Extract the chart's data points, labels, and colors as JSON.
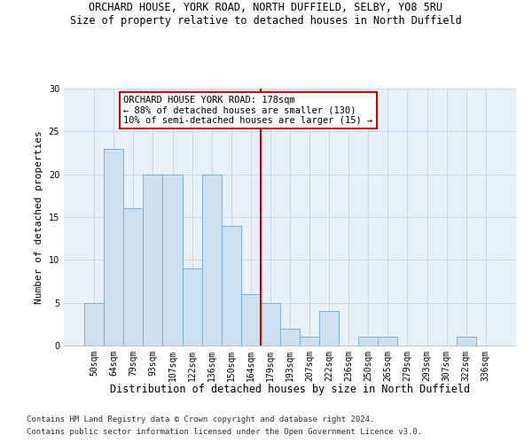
{
  "title": "ORCHARD HOUSE, YORK ROAD, NORTH DUFFIELD, SELBY, YO8 5RU",
  "subtitle": "Size of property relative to detached houses in North Duffield",
  "xlabel": "Distribution of detached houses by size in North Duffield",
  "ylabel": "Number of detached properties",
  "footer_line1": "Contains HM Land Registry data © Crown copyright and database right 2024.",
  "footer_line2": "Contains public sector information licensed under the Open Government Licence v3.0.",
  "annotation_line1": "ORCHARD HOUSE YORK ROAD: 178sqm",
  "annotation_line2": "← 88% of detached houses are smaller (130)",
  "annotation_line3": "10% of semi-detached houses are larger (15) →",
  "bar_color": "#cce0f0",
  "bar_edge_color": "#7bafd4",
  "vline_color": "#cc0000",
  "vline_index": 9,
  "categories": [
    "50sqm",
    "64sqm",
    "79sqm",
    "93sqm",
    "107sqm",
    "122sqm",
    "136sqm",
    "150sqm",
    "164sqm",
    "179sqm",
    "193sqm",
    "207sqm",
    "222sqm",
    "236sqm",
    "250sqm",
    "265sqm",
    "279sqm",
    "293sqm",
    "307sqm",
    "322sqm",
    "336sqm"
  ],
  "values": [
    5,
    23,
    16,
    20,
    20,
    9,
    20,
    14,
    6,
    5,
    2,
    1,
    4,
    0,
    1,
    1,
    0,
    0,
    0,
    1,
    0
  ],
  "ylim": [
    0,
    30
  ],
  "yticks": [
    0,
    5,
    10,
    15,
    20,
    25,
    30
  ],
  "grid_color": "#c8d8e8",
  "bg_color": "#e8f0f8",
  "title_fontsize": 8.5,
  "subtitle_fontsize": 8.5,
  "xlabel_fontsize": 8.5,
  "ylabel_fontsize": 8.0,
  "tick_fontsize": 7.0,
  "annotation_fontsize": 7.5,
  "footer_fontsize": 6.5
}
